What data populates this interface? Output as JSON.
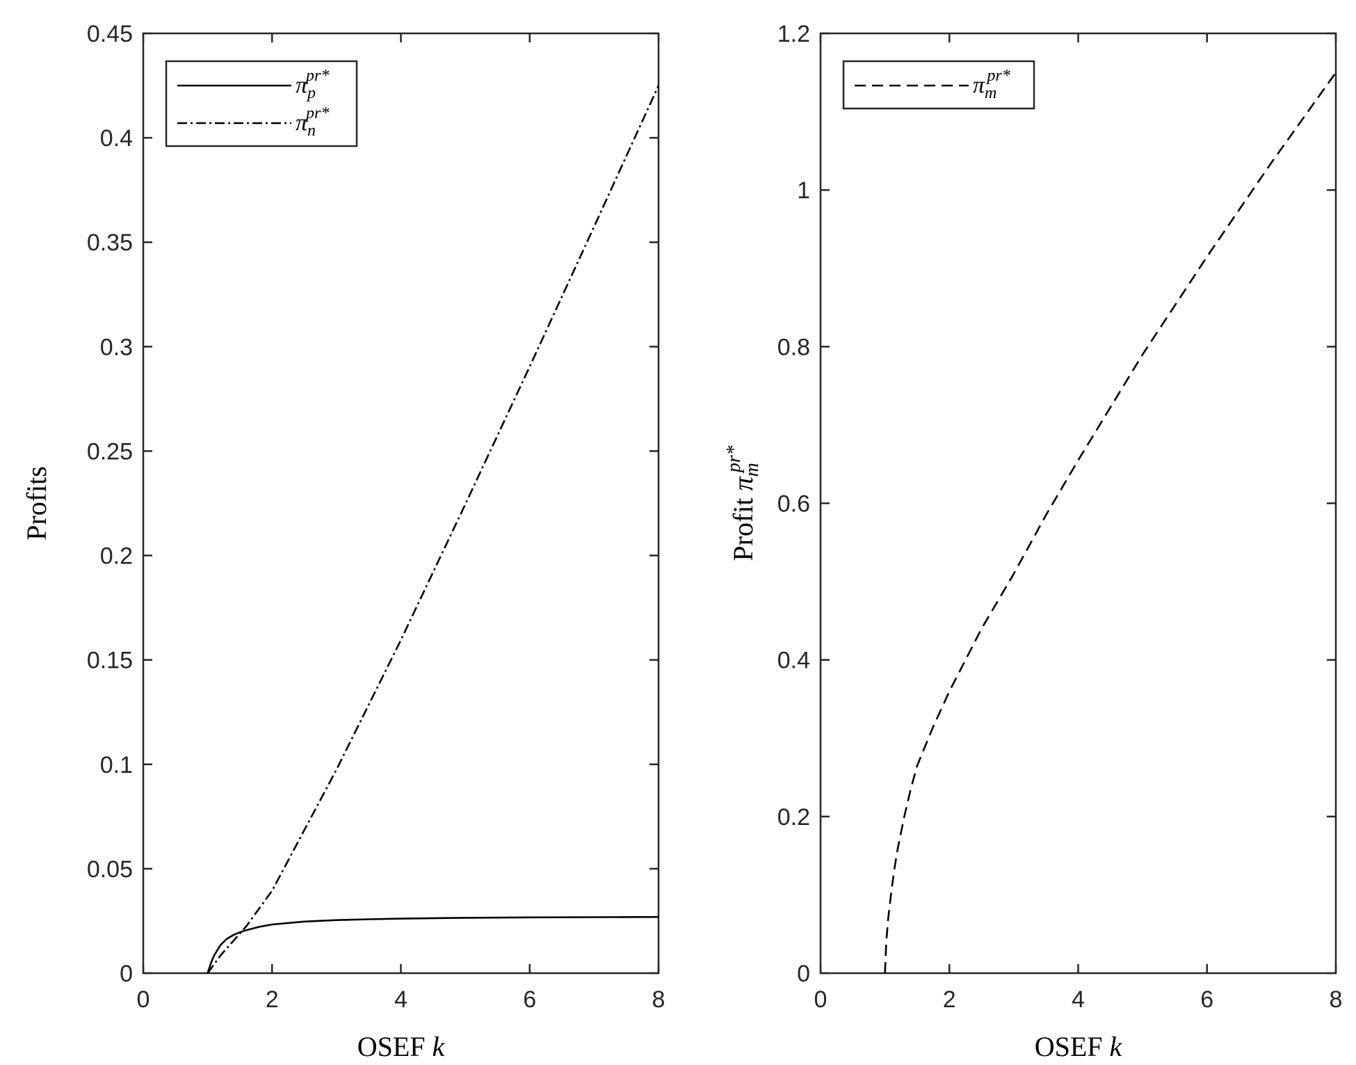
{
  "chart_data": [
    {
      "type": "line",
      "xlabel": "OSEF k",
      "ylabel": "Profits",
      "xlim": [
        0,
        8
      ],
      "ylim": [
        0,
        0.45
      ],
      "xticks": [
        "0",
        "2",
        "4",
        "6",
        "8"
      ],
      "yticks": [
        "0",
        "0.05",
        "0.1",
        "0.15",
        "0.2",
        "0.25",
        "0.3",
        "0.35",
        "0.4",
        "0.45"
      ],
      "legend_position": "top-left",
      "grid": false,
      "series": [
        {
          "name": "π_p^{pr*}",
          "name_main": "π",
          "name_sub": "p",
          "name_sup": "pr*",
          "style": "solid",
          "x": [
            1.0,
            1.05,
            1.1,
            1.2,
            1.3,
            1.4,
            1.5,
            1.6,
            1.8,
            2.0,
            2.5,
            3.0,
            3.5,
            4.0,
            5.0,
            6.0,
            7.0,
            8.0
          ],
          "y": [
            0,
            0.0048,
            0.0085,
            0.0135,
            0.0165,
            0.0183,
            0.0196,
            0.0206,
            0.0222,
            0.0233,
            0.0247,
            0.0254,
            0.0258,
            0.0261,
            0.0265,
            0.0267,
            0.0268,
            0.0269
          ]
        },
        {
          "name": "π_n^{pr*}",
          "name_main": "π",
          "name_sub": "n",
          "name_sup": "pr*",
          "style": "dashdot",
          "x": [
            1.0,
            1.2,
            1.4,
            1.6,
            2.0,
            3.0,
            4.0,
            5.0,
            6.0,
            7.0,
            8.0
          ],
          "y": [
            0,
            0.0085,
            0.0155,
            0.0225,
            0.0395,
            0.0975,
            0.1595,
            0.2245,
            0.2905,
            0.3575,
            0.425
          ]
        }
      ]
    },
    {
      "type": "line",
      "xlabel": "OSEF k",
      "ylabel": "Profit π_m^{pr*}",
      "ylabel_main": "Profit ",
      "ylabel_sym": "π",
      "ylabel_sub": "m",
      "ylabel_sup": "pr*",
      "xlim": [
        0,
        8
      ],
      "ylim": [
        0,
        1.2
      ],
      "xticks": [
        "0",
        "2",
        "4",
        "6",
        "8"
      ],
      "yticks": [
        "0",
        "0.2",
        "0.4",
        "0.6",
        "0.8",
        "1",
        "1.2"
      ],
      "legend_position": "top-left",
      "grid": false,
      "series": [
        {
          "name": "π_m^{pr*}",
          "name_main": "π",
          "name_sub": "m",
          "name_sup": "pr*",
          "style": "dashed",
          "x": [
            1.0,
            1.02,
            1.05,
            1.1,
            1.15,
            1.2,
            1.3,
            1.4,
            1.5,
            1.75,
            2.0,
            2.5,
            3.0,
            3.5,
            4.0,
            5.0,
            6.0,
            7.0,
            8.0
          ],
          "y": [
            0,
            0.04,
            0.07,
            0.105,
            0.135,
            0.16,
            0.2,
            0.235,
            0.265,
            0.315,
            0.36,
            0.44,
            0.51,
            0.585,
            0.655,
            0.79,
            0.915,
            1.035,
            1.15
          ]
        }
      ]
    }
  ]
}
